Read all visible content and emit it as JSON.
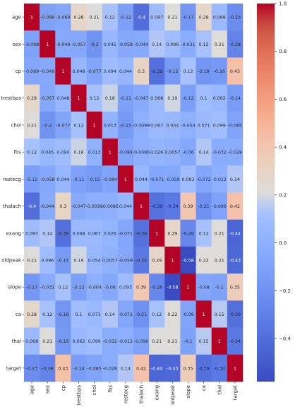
{
  "chart_data": {
    "type": "heatmap",
    "title": "",
    "xlabel": "",
    "ylabel": "",
    "labels": [
      "age",
      "sex",
      "cp",
      "trestbps",
      "chol",
      "fbs",
      "restecg",
      "thalach",
      "exang",
      "oldpeak",
      "slope",
      "ca",
      "thal",
      "target"
    ],
    "matrix": [
      [
        1,
        -0.098,
        -0.069,
        0.28,
        0.21,
        0.12,
        -0.12,
        -0.4,
        0.097,
        0.21,
        -0.17,
        0.28,
        0.068,
        -0.23
      ],
      [
        -0.098,
        1,
        -0.049,
        -0.057,
        -0.2,
        0.045,
        -0.058,
        -0.044,
        0.14,
        0.096,
        -0.031,
        0.12,
        0.21,
        -0.28
      ],
      [
        -0.069,
        -0.049,
        1,
        0.048,
        -0.077,
        0.094,
        0.044,
        0.3,
        -0.39,
        -0.15,
        0.12,
        -0.18,
        -0.16,
        0.43
      ],
      [
        0.28,
        -0.057,
        0.048,
        1,
        0.12,
        0.18,
        -0.11,
        -0.047,
        0.068,
        0.19,
        -0.12,
        0.1,
        0.062,
        -0.14
      ],
      [
        0.21,
        -0.2,
        -0.077,
        0.12,
        1,
        0.013,
        -0.15,
        -0.0099,
        0.067,
        0.054,
        -0.004,
        0.071,
        0.099,
        -0.085
      ],
      [
        0.12,
        0.045,
        0.094,
        0.18,
        0.013,
        1,
        -0.084,
        -0.0086,
        0.026,
        0.0057,
        -0.06,
        0.14,
        -0.032,
        -0.028
      ],
      [
        -0.12,
        -0.058,
        0.044,
        -0.11,
        -0.15,
        -0.084,
        1,
        0.044,
        -0.071,
        -0.059,
        0.093,
        -0.072,
        -0.012,
        0.14
      ],
      [
        -0.4,
        -0.044,
        0.3,
        -0.047,
        -0.0099,
        -0.0086,
        0.044,
        1,
        -0.38,
        -0.34,
        0.39,
        -0.21,
        -0.096,
        0.42
      ],
      [
        0.097,
        0.14,
        -0.39,
        0.068,
        0.067,
        0.026,
        -0.071,
        -0.38,
        1,
        0.29,
        -0.26,
        0.12,
        0.21,
        -0.44
      ],
      [
        0.21,
        0.096,
        -0.15,
        0.19,
        0.054,
        0.0057,
        -0.059,
        -0.34,
        0.29,
        1,
        -0.58,
        0.22,
        0.21,
        -0.43
      ],
      [
        -0.17,
        -0.031,
        0.12,
        -0.12,
        -0.004,
        -0.06,
        0.093,
        0.39,
        -0.26,
        -0.58,
        1,
        -0.08,
        -0.1,
        0.35
      ],
      [
        0.28,
        0.12,
        -0.18,
        0.1,
        0.071,
        0.14,
        -0.072,
        -0.21,
        0.12,
        0.22,
        -0.08,
        1,
        0.15,
        -0.39
      ],
      [
        0.068,
        0.21,
        -0.16,
        0.062,
        0.099,
        -0.032,
        -0.012,
        -0.096,
        0.21,
        0.21,
        -0.1,
        0.15,
        1,
        -0.34
      ],
      [
        -0.23,
        -0.28,
        0.43,
        -0.14,
        -0.085,
        -0.028,
        0.14,
        0.42,
        -0.44,
        -0.43,
        0.35,
        -0.39,
        -0.34,
        1
      ]
    ],
    "colorbar": {
      "vmin": -0.58,
      "vmax": 1,
      "ticks": [
        1.0,
        0.8,
        0.6,
        0.4,
        0.2,
        0.0,
        -0.2,
        -0.4
      ],
      "tick_labels": [
        "1.0",
        "0.8",
        "0.6",
        "0.4",
        "0.2",
        "0.0",
        "−0.2",
        "−0.4"
      ],
      "colormap": "coolwarm"
    },
    "annotated": true,
    "grid": false,
    "colors": {
      "low": "#3b4cc0",
      "mid": "#dddddd",
      "high": "#b40426"
    }
  }
}
